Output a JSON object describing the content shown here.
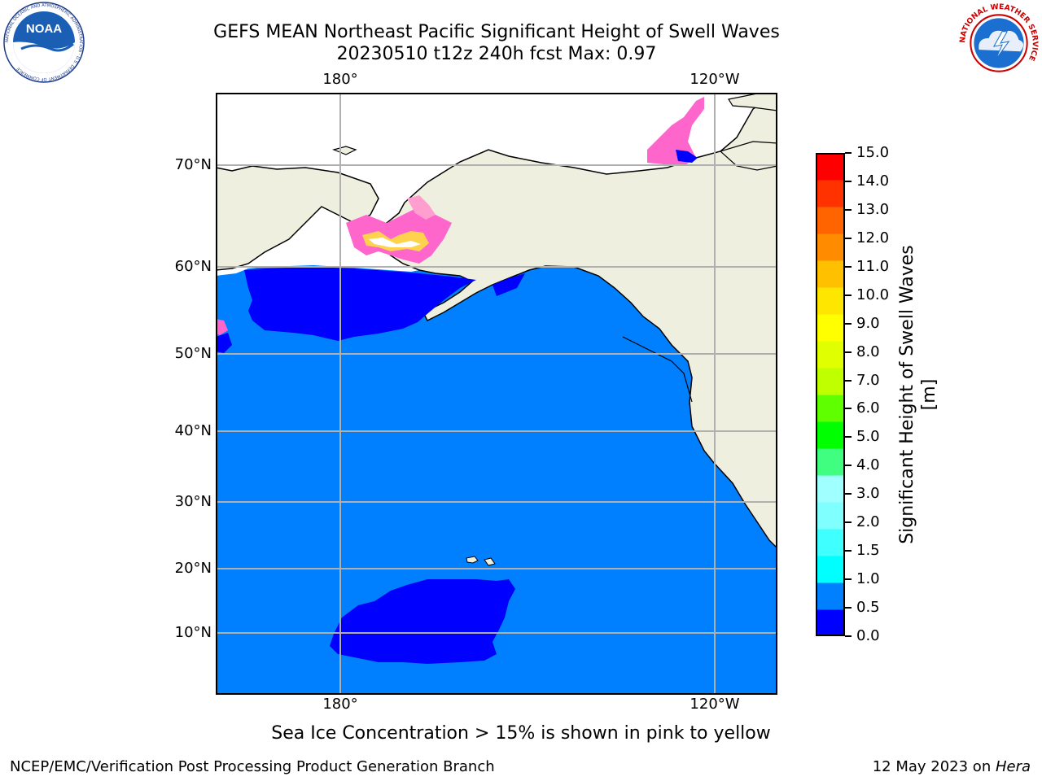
{
  "title": {
    "line1": "GEFS MEAN Northeast Pacific Significant Height of Swell Waves",
    "line2": "20230510 t12z 240h fcst   Max: 0.97"
  },
  "logos": {
    "noaa": {
      "text": "NOAA",
      "ring_text": "NATIONAL OCEANIC AND ATMOSPHERIC ADMINISTRATION · U.S. DEPARTMENT OF COMMERCE"
    },
    "nws": {
      "ring_text": "NATIONAL WEATHER SERVICE"
    }
  },
  "map": {
    "lon_labels": [
      "180°",
      "120°W"
    ],
    "lat_labels": [
      "70°N",
      "60°N",
      "50°N",
      "40°N",
      "30°N",
      "20°N",
      "10°N"
    ],
    "colors": {
      "ocean": "#0080ff",
      "low_swell": "#0000ff",
      "land": "#efefdf",
      "ice_pink": "#ff66cc",
      "ice_yellow": "#ffd24d",
      "grid": "#b0b0b0"
    }
  },
  "colorbar": {
    "label": "Significant Height of Swell Waves [m]",
    "ticks": [
      "15.0",
      "14.0",
      "13.0",
      "12.0",
      "11.0",
      "10.0",
      "9.0",
      "8.0",
      "7.0",
      "6.0",
      "5.0",
      "4.0",
      "3.0",
      "2.0",
      "1.5",
      "1.0",
      "0.5",
      "0.0"
    ],
    "colors": [
      "#0000ff",
      "#0080ff",
      "#00ffff",
      "#40ffff",
      "#80ffff",
      "#a0ffff",
      "#40ff80",
      "#00ff00",
      "#60ff00",
      "#c0ff00",
      "#e0ff00",
      "#ffff00",
      "#ffe600",
      "#ffc000",
      "#ff8c00",
      "#ff6400",
      "#ff3200",
      "#ff0000"
    ]
  },
  "footnote": "Sea Ice Concentration > 15% is shown in pink to yellow",
  "footer": {
    "left": "NCEP/EMC/Verification Post Processing Product Generation Branch",
    "right_prefix": "12 May 2023 on ",
    "right_host": "Hera"
  }
}
